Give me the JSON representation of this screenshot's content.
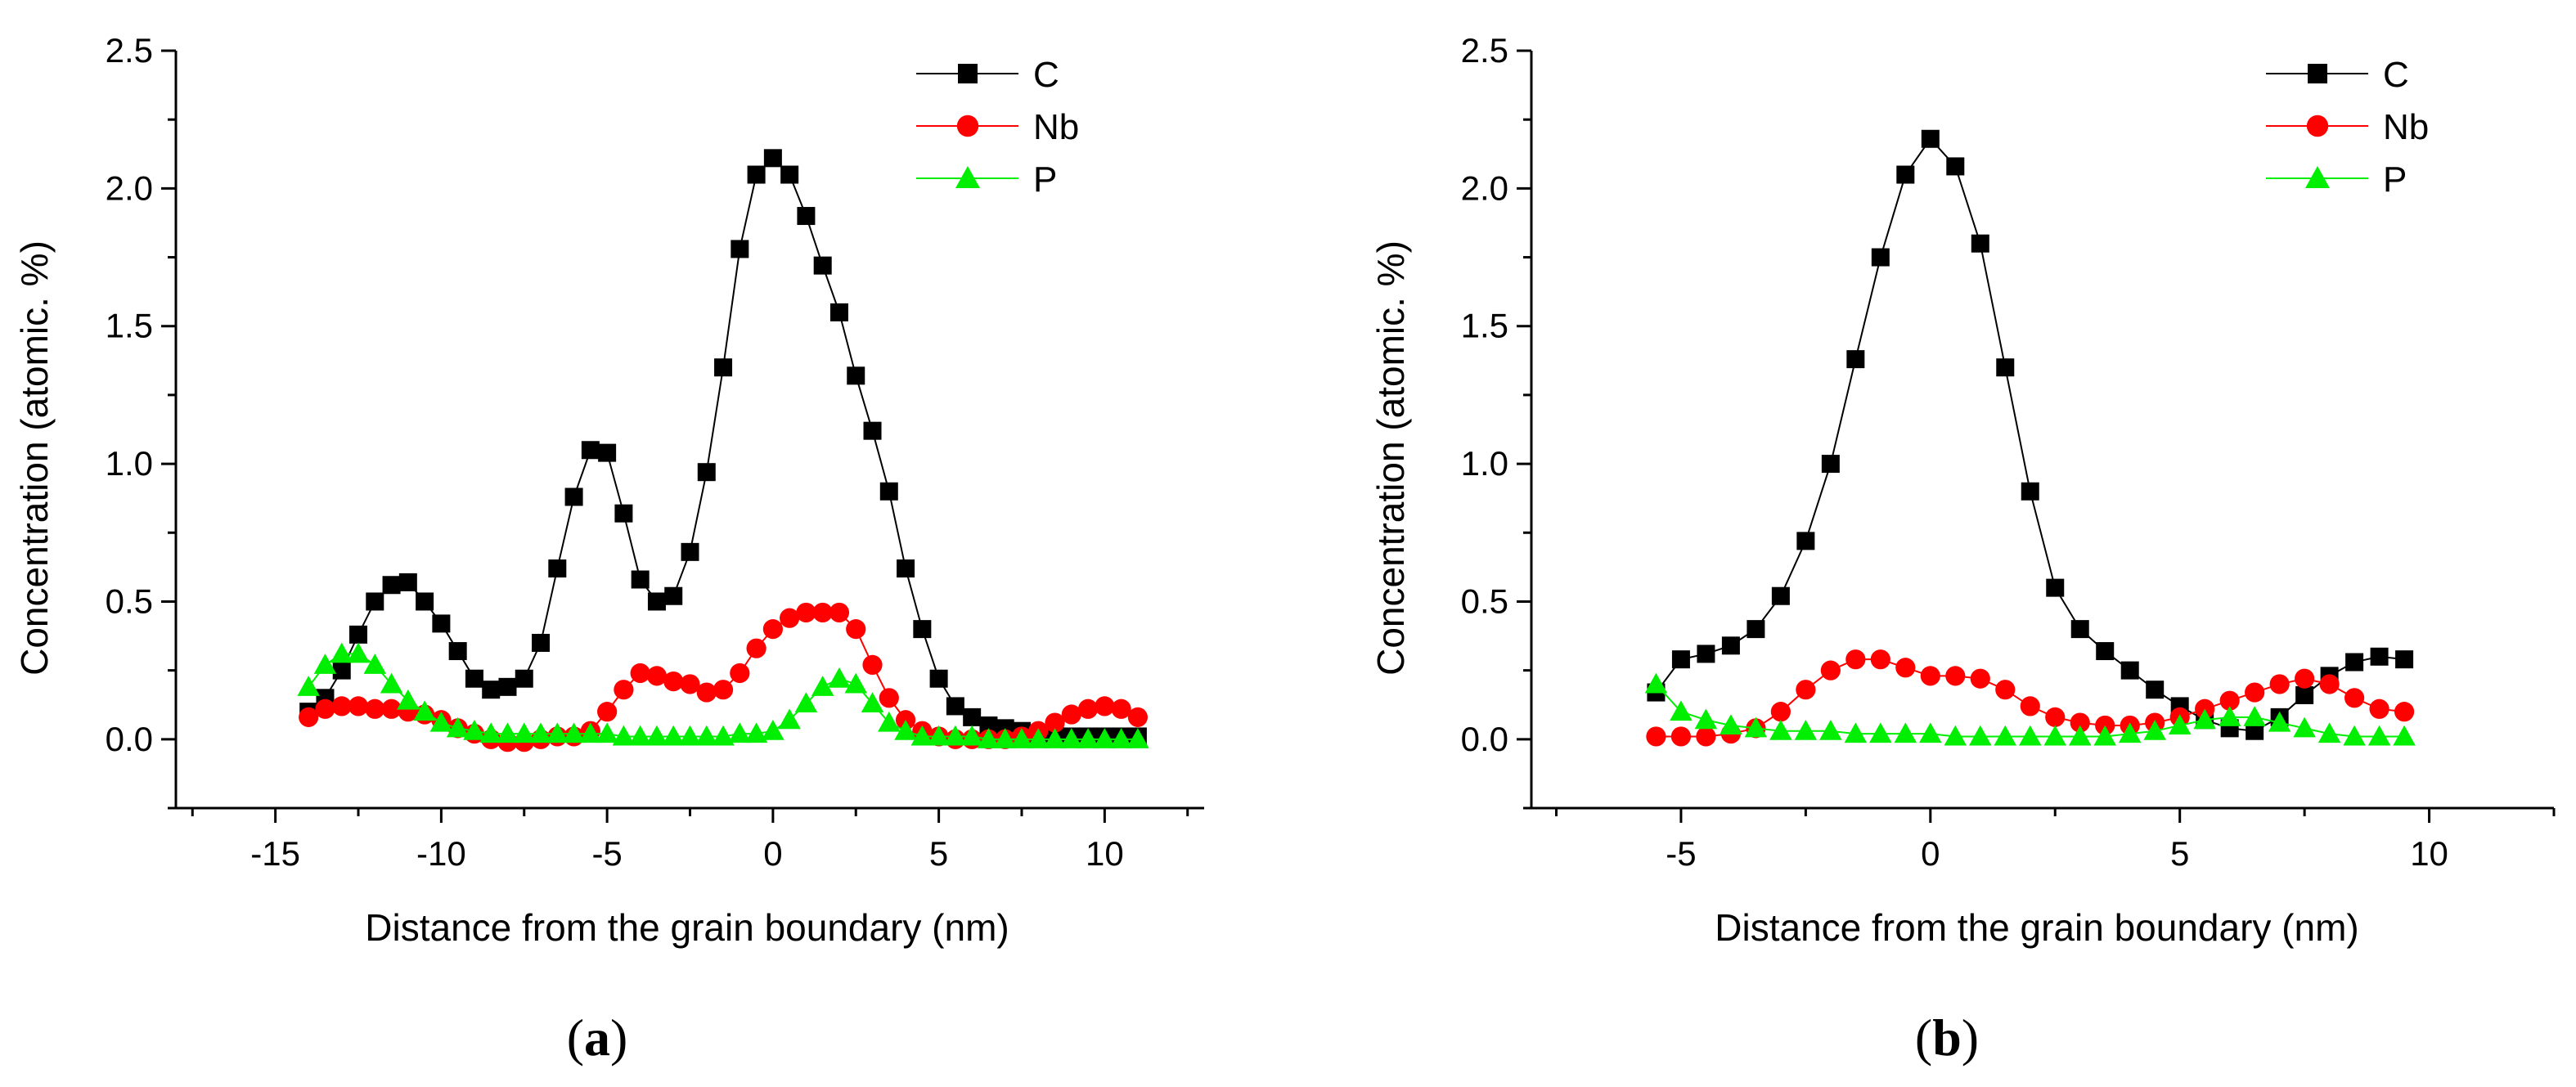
{
  "chart_data": [
    {
      "type": "line",
      "panel_label": "a",
      "xlabel": "Distance from the grain boundary (nm)",
      "ylabel": "Concentration (atomic. %)",
      "xlim": [
        -18,
        13
      ],
      "ylim": [
        -0.25,
        2.5
      ],
      "xticks": [
        -15,
        -10,
        -5,
        0,
        5,
        10
      ],
      "yticks": [
        0.0,
        0.5,
        1.0,
        1.5,
        2.0,
        2.5
      ],
      "tick_labels_x": [
        "-15",
        "-10",
        "-5",
        "0",
        "5",
        "10"
      ],
      "tick_labels_y": [
        "0.0",
        "0.5",
        "1.0",
        "1.5",
        "2.0",
        "2.5"
      ],
      "legend_position": "top-right",
      "series": [
        {
          "name": "C",
          "color": "#000000",
          "marker": "square",
          "x": [
            -14,
            -13.5,
            -13,
            -12.5,
            -12,
            -11.5,
            -11,
            -10.5,
            -10,
            -9.5,
            -9,
            -8.5,
            -8,
            -7.5,
            -7,
            -6.5,
            -6,
            -5.5,
            -5,
            -4.5,
            -4,
            -3.5,
            -3,
            -2.5,
            -2,
            -1.5,
            -1,
            -0.5,
            0,
            0.5,
            1,
            1.5,
            2,
            2.5,
            3,
            3.5,
            4,
            4.5,
            5,
            5.5,
            6,
            6.5,
            7,
            7.5,
            8,
            8.5,
            9,
            9.5,
            10,
            10.5,
            11
          ],
          "y": [
            0.1,
            0.15,
            0.25,
            0.38,
            0.5,
            0.56,
            0.57,
            0.5,
            0.42,
            0.32,
            0.22,
            0.18,
            0.19,
            0.22,
            0.35,
            0.62,
            0.88,
            1.05,
            1.04,
            0.82,
            0.58,
            0.5,
            0.52,
            0.68,
            0.97,
            1.35,
            1.78,
            2.05,
            2.11,
            2.05,
            1.9,
            1.72,
            1.55,
            1.32,
            1.12,
            0.9,
            0.62,
            0.4,
            0.22,
            0.12,
            0.08,
            0.05,
            0.04,
            0.03,
            0.02,
            0.02,
            0.01,
            0.01,
            0.01,
            0.01,
            0.01
          ]
        },
        {
          "name": "Nb",
          "color": "#ff0000",
          "marker": "circle",
          "x": [
            -14,
            -13.5,
            -13,
            -12.5,
            -12,
            -11.5,
            -11,
            -10.5,
            -10,
            -9.5,
            -9,
            -8.5,
            -8,
            -7.5,
            -7,
            -6.5,
            -6,
            -5.5,
            -5,
            -4.5,
            -4,
            -3.5,
            -3,
            -2.5,
            -2,
            -1.5,
            -1,
            -0.5,
            0,
            0.5,
            1,
            1.5,
            2,
            2.5,
            3,
            3.5,
            4,
            4.5,
            5,
            5.5,
            6,
            6.5,
            7,
            7.5,
            8,
            8.5,
            9,
            9.5,
            10,
            10.5,
            11
          ],
          "y": [
            0.08,
            0.11,
            0.12,
            0.12,
            0.11,
            0.11,
            0.1,
            0.09,
            0.07,
            0.04,
            0.02,
            0.0,
            -0.01,
            -0.01,
            0.0,
            0.01,
            0.01,
            0.03,
            0.1,
            0.18,
            0.24,
            0.23,
            0.21,
            0.2,
            0.17,
            0.18,
            0.24,
            0.33,
            0.4,
            0.44,
            0.46,
            0.46,
            0.46,
            0.4,
            0.27,
            0.15,
            0.07,
            0.03,
            0.01,
            0.0,
            0.0,
            0.0,
            0.0,
            0.01,
            0.03,
            0.06,
            0.09,
            0.11,
            0.12,
            0.11,
            0.08
          ]
        },
        {
          "name": "P",
          "color": "#00ee00",
          "marker": "triangle",
          "x": [
            -14,
            -13.5,
            -13,
            -12.5,
            -12,
            -11.5,
            -11,
            -10.5,
            -10,
            -9.5,
            -9,
            -8.5,
            -8,
            -7.5,
            -7,
            -6.5,
            -6,
            -5.5,
            -5,
            -4.5,
            -4,
            -3.5,
            -3,
            -2.5,
            -2,
            -1.5,
            -1,
            -0.5,
            0,
            0.5,
            1,
            1.5,
            2,
            2.5,
            3,
            3.5,
            4,
            4.5,
            5,
            5.5,
            6,
            6.5,
            7,
            7.5,
            8,
            8.5,
            9,
            9.5,
            10,
            10.5,
            11
          ],
          "y": [
            0.19,
            0.27,
            0.31,
            0.31,
            0.27,
            0.2,
            0.14,
            0.1,
            0.06,
            0.04,
            0.03,
            0.02,
            0.02,
            0.02,
            0.02,
            0.02,
            0.02,
            0.02,
            0.02,
            0.01,
            0.01,
            0.01,
            0.01,
            0.01,
            0.01,
            0.01,
            0.02,
            0.02,
            0.03,
            0.07,
            0.13,
            0.19,
            0.22,
            0.2,
            0.13,
            0.06,
            0.03,
            0.01,
            0.01,
            0.01,
            0.01,
            0.0,
            0.0,
            0.0,
            0.0,
            0.0,
            0.0,
            0.0,
            0.0,
            0.0,
            0.0
          ]
        }
      ]
    },
    {
      "type": "line",
      "panel_label": "b",
      "xlabel": "Distance from the grain boundary (nm)",
      "ylabel": "Concentration (atomic. %)",
      "xlim": [
        -8,
        12.5
      ],
      "ylim": [
        -0.25,
        2.5
      ],
      "xticks": [
        -5,
        0,
        5,
        10
      ],
      "yticks": [
        0.0,
        0.5,
        1.0,
        1.5,
        2.0,
        2.5
      ],
      "tick_labels_x": [
        "-5",
        "0",
        "5",
        "10"
      ],
      "tick_labels_y": [
        "0.0",
        "0.5",
        "1.0",
        "1.5",
        "2.0",
        "2.5"
      ],
      "legend_position": "top-right",
      "series": [
        {
          "name": "C",
          "color": "#000000",
          "marker": "square",
          "x": [
            -5.5,
            -5,
            -4.5,
            -4,
            -3.5,
            -3,
            -2.5,
            -2,
            -1.5,
            -1,
            -0.5,
            0,
            0.5,
            1,
            1.5,
            2,
            2.5,
            3,
            3.5,
            4,
            4.5,
            5,
            5.5,
            6,
            6.5,
            7,
            7.5,
            8,
            8.5,
            9,
            9.5
          ],
          "y": [
            0.17,
            0.29,
            0.31,
            0.34,
            0.4,
            0.52,
            0.72,
            1.0,
            1.38,
            1.75,
            2.05,
            2.18,
            2.08,
            1.8,
            1.35,
            0.9,
            0.55,
            0.4,
            0.32,
            0.25,
            0.18,
            0.12,
            0.07,
            0.04,
            0.03,
            0.08,
            0.16,
            0.23,
            0.28,
            0.3,
            0.29
          ]
        },
        {
          "name": "Nb",
          "color": "#ff0000",
          "marker": "circle",
          "x": [
            -5.5,
            -5,
            -4.5,
            -4,
            -3.5,
            -3,
            -2.5,
            -2,
            -1.5,
            -1,
            -0.5,
            0,
            0.5,
            1,
            1.5,
            2,
            2.5,
            3,
            3.5,
            4,
            4.5,
            5,
            5.5,
            6,
            6.5,
            7,
            7.5,
            8,
            8.5,
            9,
            9.5
          ],
          "y": [
            0.01,
            0.01,
            0.01,
            0.02,
            0.04,
            0.1,
            0.18,
            0.25,
            0.29,
            0.29,
            0.26,
            0.23,
            0.23,
            0.22,
            0.18,
            0.12,
            0.08,
            0.06,
            0.05,
            0.05,
            0.06,
            0.08,
            0.11,
            0.14,
            0.17,
            0.2,
            0.22,
            0.2,
            0.15,
            0.11,
            0.1
          ]
        },
        {
          "name": "P",
          "color": "#00ee00",
          "marker": "triangle",
          "x": [
            -5.5,
            -5,
            -4.5,
            -4,
            -3.5,
            -3,
            -2.5,
            -2,
            -1.5,
            -1,
            -0.5,
            0,
            0.5,
            1,
            1.5,
            2,
            2.5,
            3,
            3.5,
            4,
            4.5,
            5,
            5.5,
            6,
            6.5,
            7,
            7.5,
            8,
            8.5,
            9,
            9.5
          ],
          "y": [
            0.2,
            0.1,
            0.07,
            0.05,
            0.04,
            0.03,
            0.03,
            0.03,
            0.02,
            0.02,
            0.02,
            0.02,
            0.01,
            0.01,
            0.01,
            0.01,
            0.01,
            0.01,
            0.01,
            0.02,
            0.03,
            0.05,
            0.07,
            0.08,
            0.08,
            0.06,
            0.04,
            0.02,
            0.01,
            0.01,
            0.01
          ]
        }
      ]
    }
  ]
}
